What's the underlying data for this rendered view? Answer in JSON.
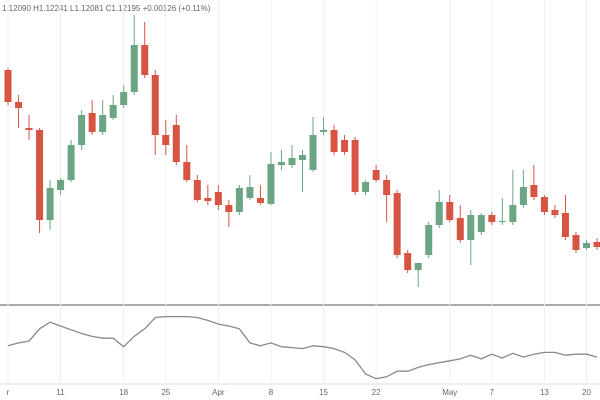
{
  "chart_data": {
    "type": "candlestick",
    "header": "1.12090 H1.12241 L1.12081 C1.12195 +0.00126 (+0.11%)",
    "categories": [
      "r",
      null,
      null,
      null,
      null,
      "11",
      null,
      null,
      null,
      null,
      null,
      "18",
      null,
      null,
      null,
      "25",
      null,
      null,
      null,
      null,
      "Apr",
      null,
      null,
      null,
      null,
      "8",
      null,
      null,
      null,
      null,
      "15",
      null,
      null,
      null,
      null,
      "22",
      null,
      null,
      null,
      null,
      null,
      null,
      "May",
      null,
      null,
      null,
      "7",
      null,
      null,
      null,
      null,
      "13",
      null,
      null,
      null,
      "20",
      null
    ],
    "open": [
      1.1395,
      1.1363,
      1.1337,
      1.1335,
      1.1245,
      1.1275,
      1.1285,
      1.132,
      1.1352,
      1.1333,
      1.1347,
      1.136,
      1.1373,
      1.142,
      1.139,
      1.133,
      1.134,
      1.1303,
      1.1285,
      1.1267,
      1.1273,
      1.126,
      1.1253,
      1.1267,
      1.1267,
      1.1261,
      1.13,
      1.13,
      1.1305,
      1.1295,
      1.1333,
      1.1335,
      1.1325,
      1.1325,
      1.1273,
      1.1295,
      1.1285,
      1.1272,
      1.1212,
      1.1195,
      1.121,
      1.124,
      1.1263,
      1.1247,
      1.1225,
      1.1233,
      1.125,
      1.1243,
      1.1243,
      1.126,
      1.128,
      1.1268,
      1.1255,
      1.1252,
      1.123,
      1.1217,
      1.1223
    ],
    "high": [
      1.1397,
      1.137,
      1.135,
      1.1337,
      1.1285,
      1.1287,
      1.1325,
      1.1355,
      1.1365,
      1.1365,
      1.137,
      1.138,
      1.145,
      1.1443,
      1.1395,
      1.1345,
      1.135,
      1.132,
      1.129,
      1.128,
      1.128,
      1.1265,
      1.128,
      1.129,
      1.128,
      1.1313,
      1.1315,
      1.132,
      1.1315,
      1.1348,
      1.1348,
      1.134,
      1.133,
      1.1328,
      1.1285,
      1.13,
      1.129,
      1.1275,
      1.1215,
      1.1202,
      1.1243,
      1.1275,
      1.127,
      1.126,
      1.1255,
      1.1252,
      1.1253,
      1.1267,
      1.1295,
      1.1295,
      1.13,
      1.127,
      1.126,
      1.127,
      1.1233,
      1.1225,
      1.1227
    ],
    "low": [
      1.136,
      1.1337,
      1.1325,
      1.1232,
      1.1235,
      1.127,
      1.1283,
      1.1315,
      1.133,
      1.133,
      1.1345,
      1.1357,
      1.137,
      1.1387,
      1.131,
      1.131,
      1.13,
      1.1283,
      1.1263,
      1.126,
      1.1255,
      1.1238,
      1.125,
      1.1265,
      1.126,
      1.126,
      1.1295,
      1.1297,
      1.1273,
      1.1293,
      1.133,
      1.131,
      1.131,
      1.127,
      1.127,
      1.1283,
      1.1243,
      1.1207,
      1.1192,
      1.1178,
      1.1207,
      1.1237,
      1.1243,
      1.1222,
      1.12,
      1.123,
      1.124,
      1.124,
      1.124,
      1.1257,
      1.1265,
      1.125,
      1.1247,
      1.1225,
      1.1212,
      1.1215,
      1.1215
    ],
    "close": [
      1.1363,
      1.1357,
      1.1335,
      1.1245,
      1.1277,
      1.1285,
      1.132,
      1.135,
      1.1333,
      1.135,
      1.136,
      1.1373,
      1.142,
      1.139,
      1.133,
      1.132,
      1.1303,
      1.1285,
      1.1265,
      1.1264,
      1.126,
      1.1253,
      1.1277,
      1.1278,
      1.1262,
      1.1301,
      1.1303,
      1.1307,
      1.131,
      1.133,
      1.1335,
      1.1313,
      1.1313,
      1.1273,
      1.1283,
      1.1285,
      1.127,
      1.121,
      1.1195,
      1.1202,
      1.124,
      1.1263,
      1.1245,
      1.1225,
      1.125,
      1.125,
      1.1243,
      1.1244,
      1.126,
      1.1278,
      1.1268,
      1.1253,
      1.125,
      1.1228,
      1.1215,
      1.1222,
      1.1218
    ],
    "up_color": "#6ba583",
    "down_color": "#d75442",
    "ylim": [
      1.117,
      1.1465
    ],
    "indicator": {
      "type": "line",
      "color": "#8a8a8a",
      "ylim": [
        0,
        85
      ],
      "values": [
        47,
        50,
        52,
        65,
        72,
        68,
        64,
        60,
        57,
        55,
        55,
        46,
        57,
        65,
        77,
        78,
        78,
        78,
        77,
        74,
        70,
        68,
        65,
        50,
        47,
        50,
        46,
        45,
        44,
        47,
        46,
        44,
        40,
        32,
        17,
        12,
        14,
        20,
        20,
        24,
        27,
        29,
        31,
        33,
        37,
        33,
        38,
        34,
        39,
        35,
        38,
        40,
        40,
        37,
        38,
        38,
        35
      ]
    }
  }
}
